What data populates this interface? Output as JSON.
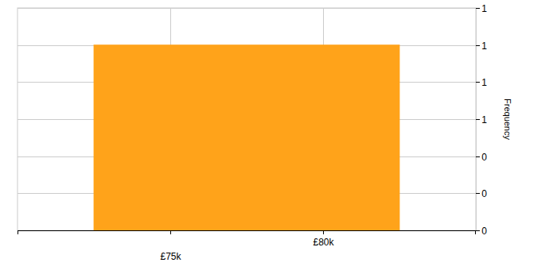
{
  "chart_data": {
    "type": "histogram",
    "y_label": "Frequency",
    "bins": [
      72500,
      82500
    ],
    "values": [
      1
    ],
    "color": "#ffa31a",
    "xlim": [
      70000,
      85000
    ],
    "xticks": [
      {
        "value": 75000,
        "label": "£75k"
      },
      {
        "value": 80000,
        "label": "£80k"
      }
    ],
    "ylim": [
      0,
      1.2
    ],
    "yticks": [
      {
        "value": 0,
        "label": "0"
      },
      {
        "value": 0.2,
        "label": "0"
      },
      {
        "value": 0.4,
        "label": "0"
      },
      {
        "value": 0.6,
        "label": "1"
      },
      {
        "value": 0.8,
        "label": "1"
      },
      {
        "value": 1,
        "label": "1"
      },
      {
        "value": 1.2,
        "label": "1"
      }
    ],
    "grid": true
  }
}
